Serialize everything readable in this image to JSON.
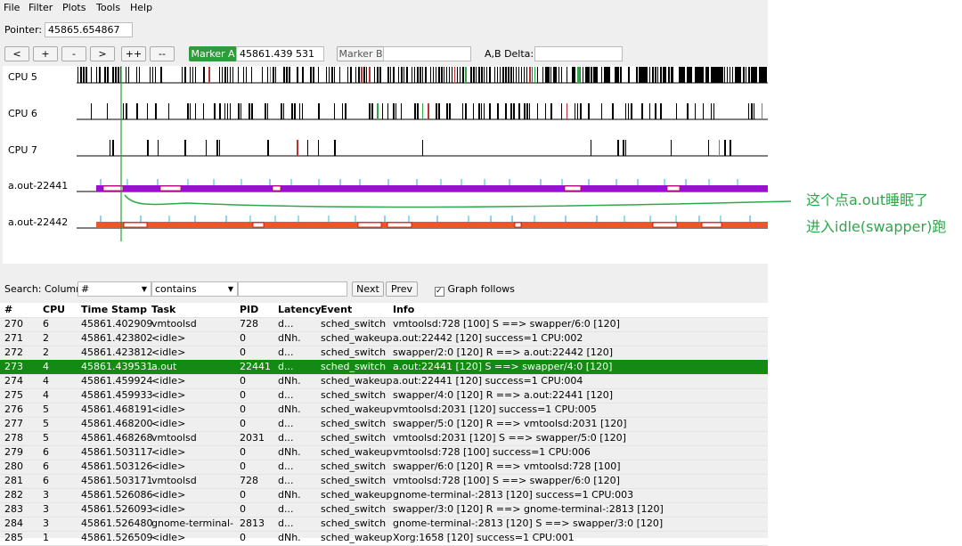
{
  "menu": [
    "File",
    "Filter",
    "Plots",
    "Tools",
    "Help"
  ],
  "pointer": {
    "label": "Pointer:",
    "value": "45865.654867"
  },
  "nav_buttons": [
    "<",
    "+",
    "-",
    ">",
    "++",
    "--"
  ],
  "marker_a": {
    "label": "Marker A",
    "value": "45861.439 531"
  },
  "marker_b": {
    "label": "Marker B"
  },
  "delta_label": "A,B Delta:",
  "graph_rows": [
    "CPU 5",
    "CPU 6",
    "CPU 7",
    "a.out-22441",
    "a.out-22442"
  ],
  "annotation": [
    "这个点a.out睡眠了",
    "进入idle(swapper)跑"
  ],
  "search": {
    "label": "Search: Column",
    "column": "#",
    "mode": "contains",
    "next": "Next",
    "prev": "Prev",
    "graph_follows": "Graph follows"
  },
  "table": {
    "columns": [
      "#",
      "CPU",
      "Time Stamp",
      "Task",
      "PID",
      "Latency",
      "Event",
      "Info"
    ],
    "selected_row": 3,
    "rows": [
      [
        "270",
        "6",
        "45861.402909",
        "vmtoolsd",
        "728",
        "d...",
        "sched_switch",
        "vmtoolsd:728 [100] S ==> swapper/6:0 [120]"
      ],
      [
        "271",
        "2",
        "45861.423802",
        "<idle>",
        "0",
        "dNh.",
        "sched_wakeup",
        "a.out:22442 [120] success=1 CPU:002"
      ],
      [
        "272",
        "2",
        "45861.423812",
        "<idle>",
        "0",
        "d...",
        "sched_switch",
        "swapper/2:0 [120] R ==> a.out:22442 [120]"
      ],
      [
        "273",
        "4",
        "45861.439531",
        "a.out",
        "22441",
        "d...",
        "sched_switch",
        "a.out:22441 [120] S ==> swapper/4:0 [120]"
      ],
      [
        "274",
        "4",
        "45861.459924",
        "<idle>",
        "0",
        "dNh.",
        "sched_wakeup",
        "a.out:22441 [120] success=1 CPU:004"
      ],
      [
        "275",
        "4",
        "45861.459933",
        "<idle>",
        "0",
        "d...",
        "sched_switch",
        "swapper/4:0 [120] R ==> a.out:22441 [120]"
      ],
      [
        "276",
        "5",
        "45861.468191",
        "<idle>",
        "0",
        "dNh.",
        "sched_wakeup",
        "vmtoolsd:2031 [120] success=1 CPU:005"
      ],
      [
        "277",
        "5",
        "45861.468200",
        "<idle>",
        "0",
        "d...",
        "sched_switch",
        "swapper/5:0 [120] R ==> vmtoolsd:2031 [120]"
      ],
      [
        "278",
        "5",
        "45861.468268",
        "vmtoolsd",
        "2031",
        "d...",
        "sched_switch",
        "vmtoolsd:2031 [120] S ==> swapper/5:0 [120]"
      ],
      [
        "279",
        "6",
        "45861.503117",
        "<idle>",
        "0",
        "dNh.",
        "sched_wakeup",
        "vmtoolsd:728 [100] success=1 CPU:006"
      ],
      [
        "280",
        "6",
        "45861.503126",
        "<idle>",
        "0",
        "d...",
        "sched_switch",
        "swapper/6:0 [120] R ==> vmtoolsd:728 [100]"
      ],
      [
        "281",
        "6",
        "45861.503171",
        "vmtoolsd",
        "728",
        "d...",
        "sched_switch",
        "vmtoolsd:728 [100] S ==> swapper/6:0 [120]"
      ],
      [
        "282",
        "3",
        "45861.526086",
        "<idle>",
        "0",
        "dNh.",
        "sched_wakeup",
        "gnome-terminal-:2813 [120] success=1 CPU:003"
      ],
      [
        "283",
        "3",
        "45861.526093",
        "<idle>",
        "0",
        "d...",
        "sched_switch",
        "swapper/3:0 [120] R ==> gnome-terminal-:2813 [120]"
      ],
      [
        "284",
        "3",
        "45861.526480",
        "gnome-terminal-",
        "2813",
        "d...",
        "sched_switch",
        "gnome-terminal-:2813 [120] S ==> swapper/3:0 [120]"
      ],
      [
        "285",
        "1",
        "45861.526509",
        "<idle>",
        "0",
        "dNh.",
        "sched_wakeup",
        "Xorg:1658 [120] success=1 CPU:001"
      ]
    ]
  }
}
